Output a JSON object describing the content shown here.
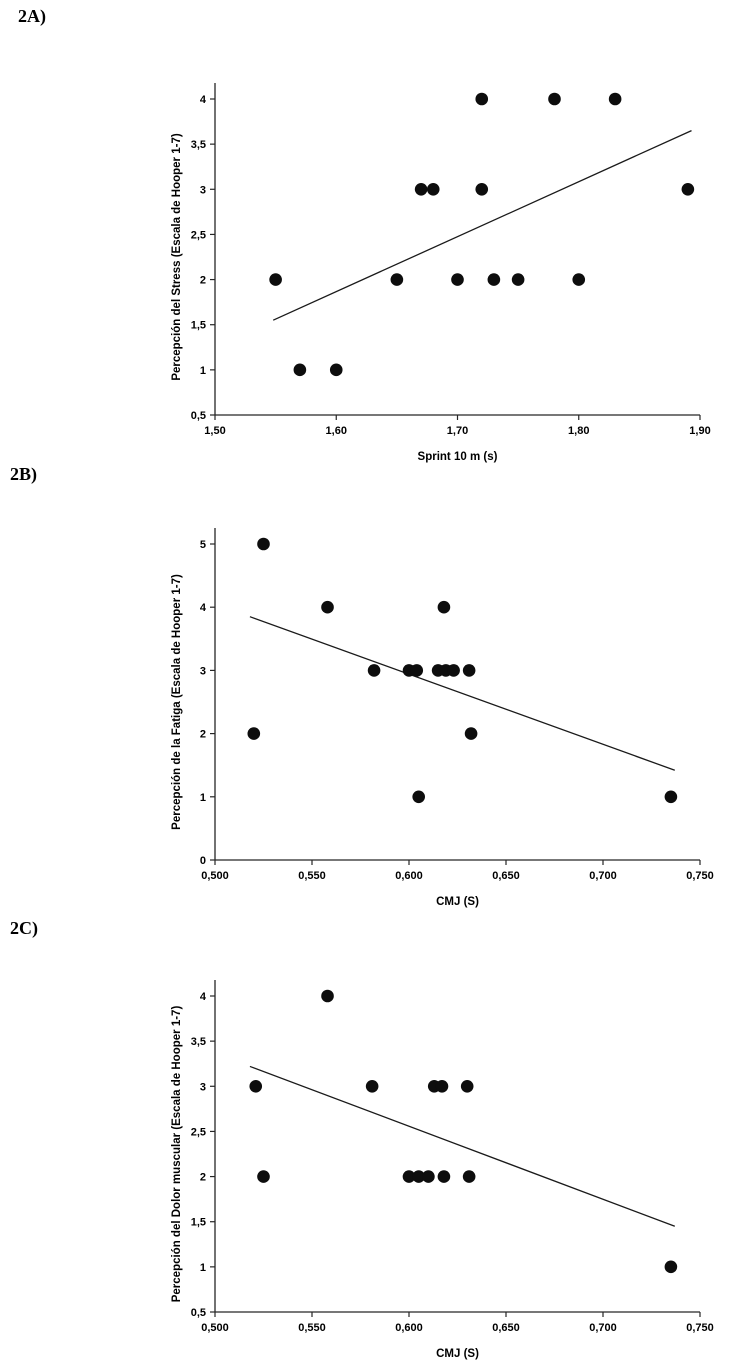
{
  "figure": {
    "background": "#ffffff",
    "marker_color": "#0d0d0d",
    "line_color": "#1a1a1a",
    "axis_color": "#262626"
  },
  "chart_data": [
    {
      "panel_label": "2A)",
      "type": "scatter",
      "xlabel": "Sprint 10 m (s)",
      "ylabel": "Percepción del Stress (Escala de Hooper 1-7)",
      "xlim": [
        1.5,
        1.9
      ],
      "ylim": [
        0.5,
        4
      ],
      "x_ticks": [
        1.5,
        1.6,
        1.7,
        1.8,
        1.9
      ],
      "x_tick_labels": [
        "1,50",
        "1,60",
        "1,70",
        "1,80",
        "1,90"
      ],
      "y_ticks": [
        0.5,
        1,
        1.5,
        2,
        2.5,
        3,
        3.5,
        4
      ],
      "y_tick_labels": [
        "0,5",
        "1",
        "1,5",
        "2",
        "2,5",
        "3",
        "3,5",
        "4"
      ],
      "grid": false,
      "legend": false,
      "points": [
        [
          1.55,
          2
        ],
        [
          1.57,
          1
        ],
        [
          1.6,
          1
        ],
        [
          1.65,
          2
        ],
        [
          1.67,
          3
        ],
        [
          1.68,
          3
        ],
        [
          1.7,
          2
        ],
        [
          1.72,
          4
        ],
        [
          1.72,
          3
        ],
        [
          1.73,
          2
        ],
        [
          1.75,
          2
        ],
        [
          1.78,
          4
        ],
        [
          1.8,
          2
        ],
        [
          1.83,
          4
        ],
        [
          1.89,
          3
        ]
      ],
      "trendline": {
        "x_start": 1.548,
        "y_start": 1.55,
        "x_end": 1.893,
        "y_end": 3.65
      }
    },
    {
      "panel_label": "2B)",
      "type": "scatter",
      "xlabel": "CMJ (S)",
      "ylabel": "Percepción de la Fatiga (Escala de Hooper 1-7)",
      "xlim": [
        0.5,
        0.75
      ],
      "ylim": [
        0,
        5
      ],
      "x_ticks": [
        0.5,
        0.55,
        0.6,
        0.65,
        0.7,
        0.75
      ],
      "x_tick_labels": [
        "0,500",
        "0,550",
        "0,600",
        "0,650",
        "0,700",
        "0,750"
      ],
      "y_ticks": [
        0,
        1,
        2,
        3,
        4,
        5
      ],
      "y_tick_labels": [
        "0",
        "1",
        "2",
        "3",
        "4",
        "5"
      ],
      "grid": false,
      "legend": false,
      "points": [
        [
          0.525,
          5
        ],
        [
          0.52,
          2
        ],
        [
          0.558,
          4
        ],
        [
          0.582,
          3
        ],
        [
          0.6,
          3
        ],
        [
          0.604,
          3
        ],
        [
          0.605,
          1
        ],
        [
          0.615,
          3
        ],
        [
          0.618,
          4
        ],
        [
          0.619,
          3
        ],
        [
          0.623,
          3
        ],
        [
          0.631,
          3
        ],
        [
          0.632,
          2
        ],
        [
          0.735,
          1
        ]
      ],
      "trendline": {
        "x_start": 0.518,
        "y_start": 3.85,
        "x_end": 0.737,
        "y_end": 1.42
      }
    },
    {
      "panel_label": "2C)",
      "type": "scatter",
      "xlabel": "CMJ (S)",
      "ylabel": "Percepción del Dolor muscular (Escala de Hooper 1-7)",
      "xlim": [
        0.5,
        0.75
      ],
      "ylim": [
        0.5,
        4
      ],
      "x_ticks": [
        0.5,
        0.55,
        0.6,
        0.65,
        0.7,
        0.75
      ],
      "x_tick_labels": [
        "0,500",
        "0,550",
        "0,600",
        "0,650",
        "0,700",
        "0,750"
      ],
      "y_ticks": [
        0.5,
        1,
        1.5,
        2,
        2.5,
        3,
        3.5,
        4
      ],
      "y_tick_labels": [
        "0,5",
        "1",
        "1,5",
        "2",
        "2,5",
        "3",
        "3,5",
        "4"
      ],
      "grid": false,
      "legend": false,
      "points": [
        [
          0.521,
          3
        ],
        [
          0.525,
          2
        ],
        [
          0.558,
          4
        ],
        [
          0.581,
          3
        ],
        [
          0.6,
          2
        ],
        [
          0.605,
          2
        ],
        [
          0.61,
          2
        ],
        [
          0.613,
          3
        ],
        [
          0.617,
          3
        ],
        [
          0.618,
          2
        ],
        [
          0.63,
          3
        ],
        [
          0.631,
          2
        ],
        [
          0.735,
          1
        ]
      ],
      "trendline": {
        "x_start": 0.518,
        "y_start": 3.22,
        "x_end": 0.737,
        "y_end": 1.45
      }
    }
  ]
}
